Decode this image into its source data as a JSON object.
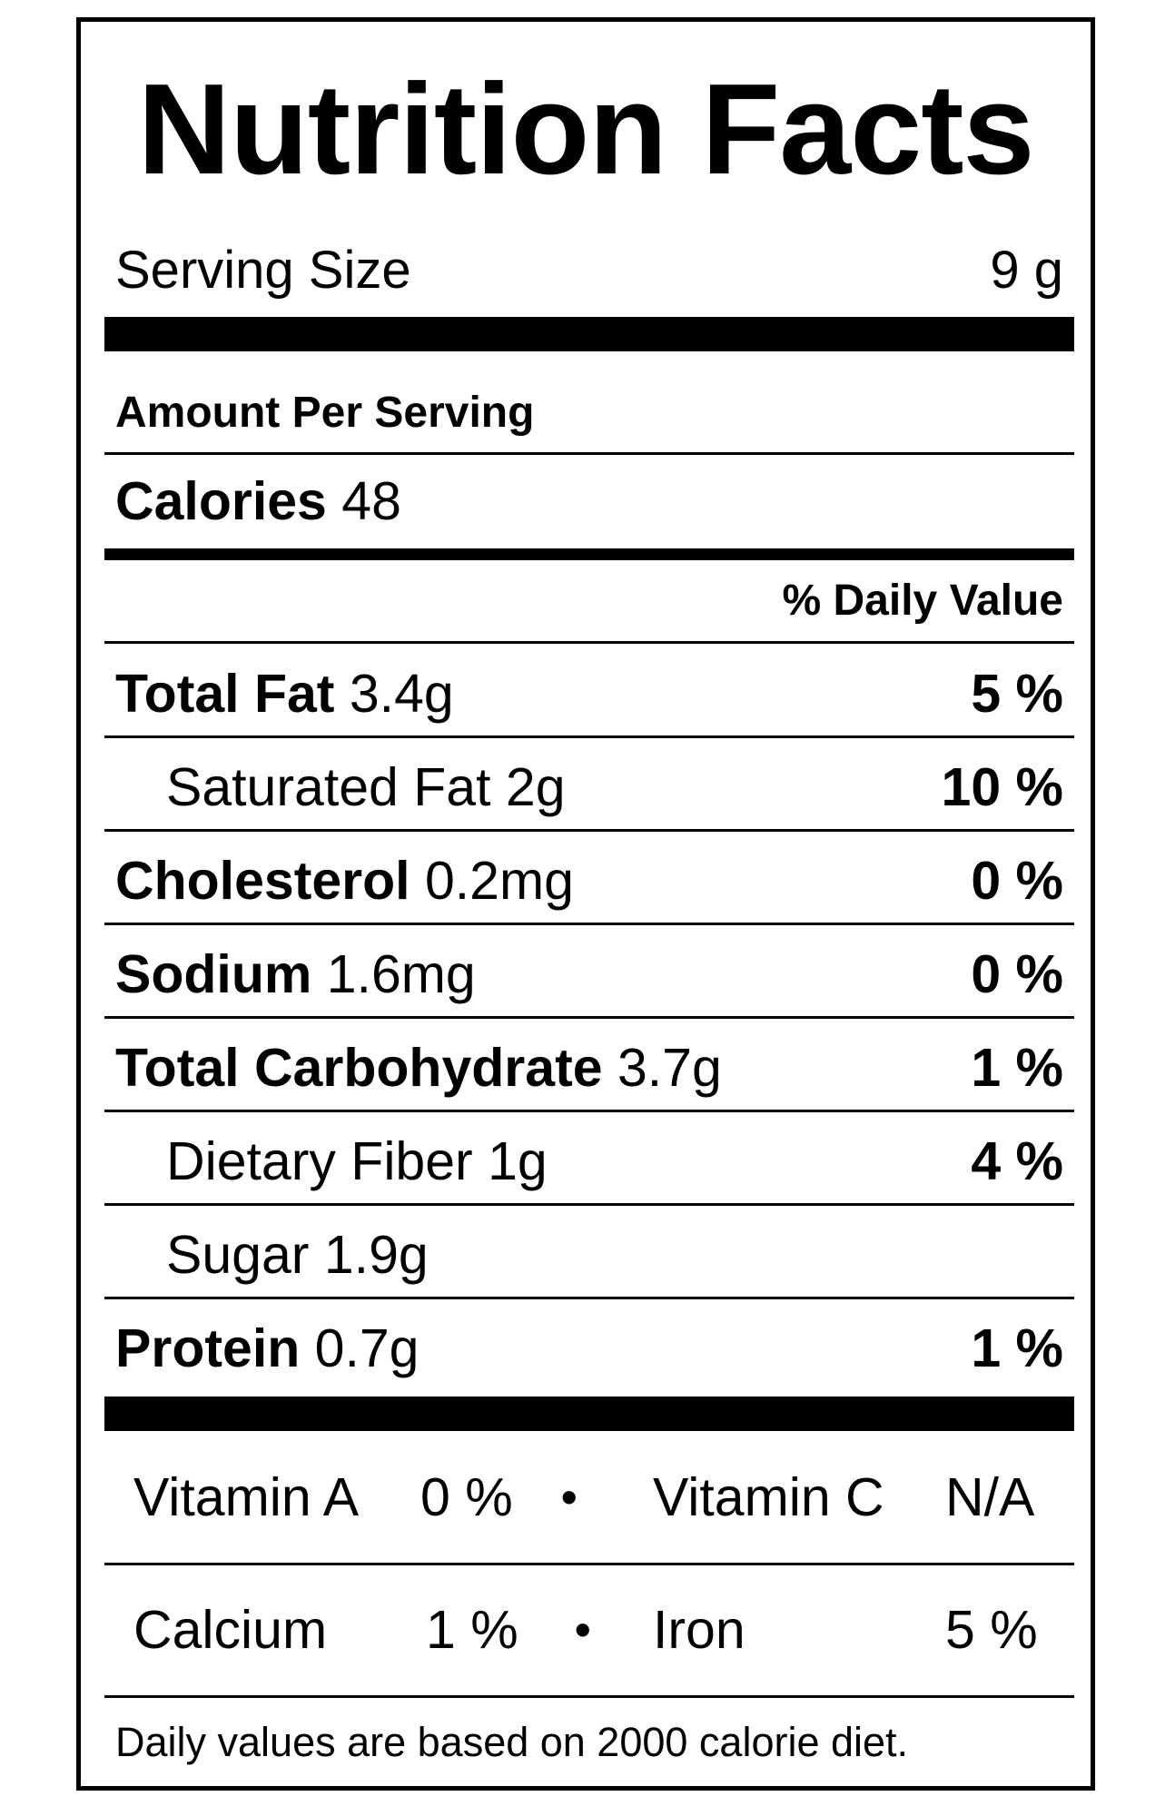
{
  "title": "Nutrition Facts",
  "serving": {
    "label": "Serving Size",
    "value": "9 g"
  },
  "amount_per_serving": "Amount Per Serving",
  "calories": {
    "label": "Calories",
    "value": "48"
  },
  "daily_value_header": "% Daily Value",
  "nutrients": [
    {
      "label": "Total Fat",
      "amount": "3.4g",
      "dv": "5 %"
    },
    {
      "label": "Saturated Fat",
      "amount": "2g",
      "dv": "10 %"
    },
    {
      "label": "Cholesterol",
      "amount": "0.2mg",
      "dv": "0 %"
    },
    {
      "label": "Sodium",
      "amount": "1.6mg",
      "dv": "0 %"
    },
    {
      "label": "Total Carbohydrate",
      "amount": "3.7g",
      "dv": "1 %"
    },
    {
      "label": "Dietary Fiber",
      "amount": "1g",
      "dv": "4 %"
    },
    {
      "label": "Sugar",
      "amount": "1.9g",
      "dv": ""
    },
    {
      "label": "Protein",
      "amount": "0.7g",
      "dv": "1 %"
    }
  ],
  "vitamins": [
    {
      "label": "Vitamin A",
      "value": "0 %"
    },
    {
      "label": "Vitamin C",
      "value": "N/A"
    },
    {
      "label": "Calcium",
      "value": "1 %"
    },
    {
      "label": "Iron",
      "value": "5 %"
    }
  ],
  "separator": "•",
  "footnote": "Daily values are based on 2000 calorie diet."
}
